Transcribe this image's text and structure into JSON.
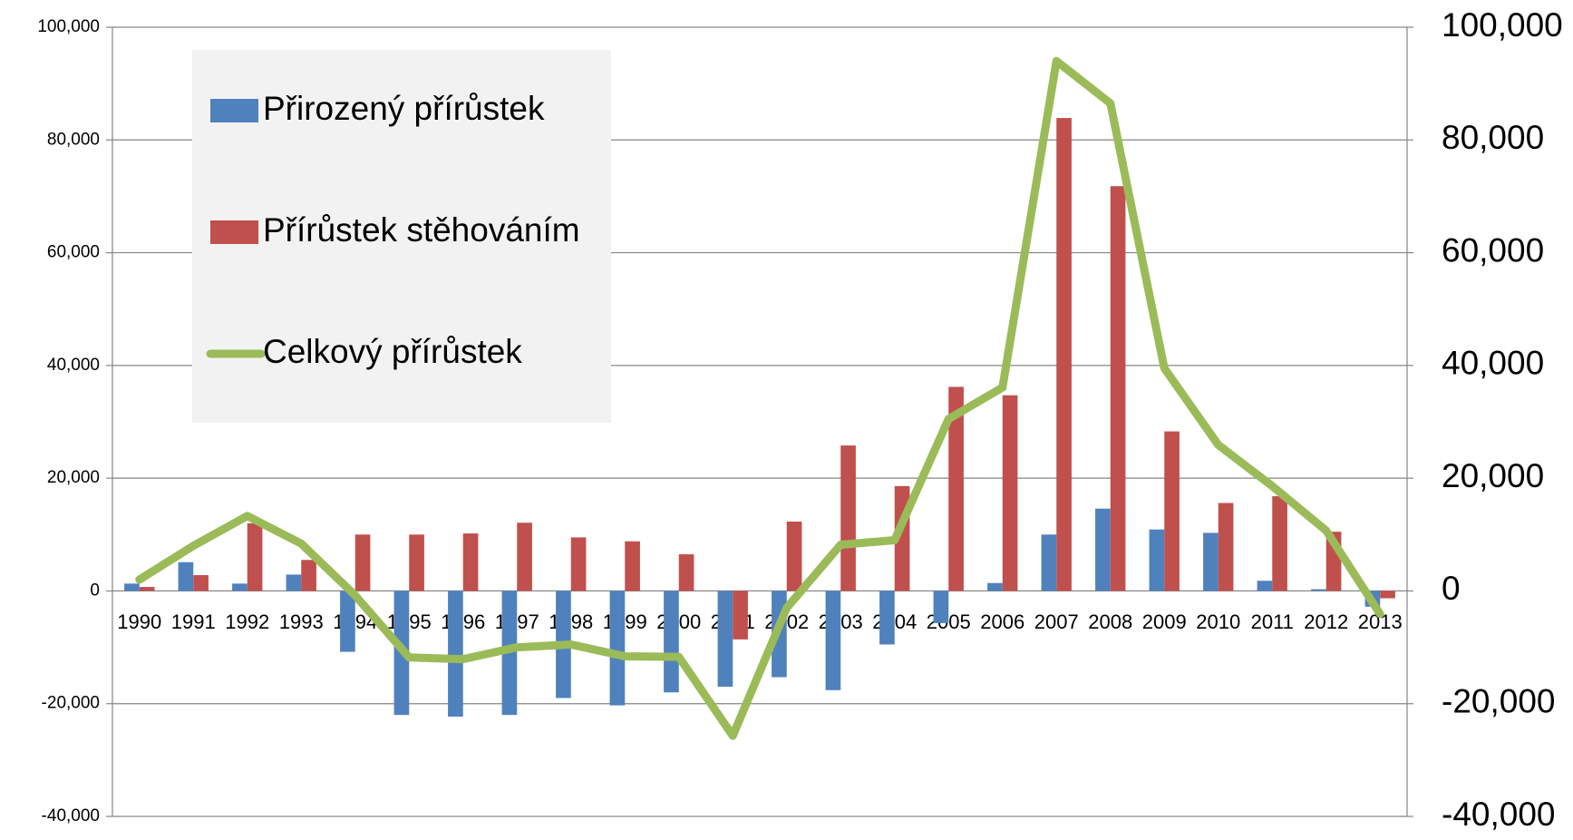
{
  "chart_data": {
    "type": "bar",
    "categories": [
      "1990",
      "1991",
      "1992",
      "1993",
      "1994",
      "1995",
      "1996",
      "1997",
      "1998",
      "1999",
      "2000",
      "2001",
      "2002",
      "2003",
      "2004",
      "2005",
      "2006",
      "2007",
      "2008",
      "2009",
      "2010",
      "2011",
      "2012",
      "2013"
    ],
    "series": [
      {
        "name": "Přirozený přírůstek",
        "color": "#4f81bd",
        "type": "bar",
        "values": [
          1300,
          5100,
          1300,
          2900,
          -10800,
          -22000,
          -22300,
          -22000,
          -19000,
          -20300,
          -18000,
          -17000,
          -15300,
          -17600,
          -9500,
          -5700,
          1400,
          10000,
          14600,
          10900,
          10300,
          1800,
          300,
          -2800
        ]
      },
      {
        "name": "Přírůstek stěhováním",
        "color": "#c0504d",
        "type": "bar",
        "values": [
          700,
          2800,
          12000,
          5500,
          10000,
          10000,
          10200,
          12100,
          9500,
          8800,
          6500,
          -8600,
          12300,
          25800,
          18600,
          36200,
          34700,
          83900,
          71800,
          28300,
          15600,
          16800,
          10500,
          -1300
        ]
      },
      {
        "name": "Celkový přírůstek",
        "color": "#9bbb59",
        "type": "line",
        "axis": "y2",
        "values": [
          2000,
          8000,
          13300,
          8400,
          -800,
          -11800,
          -12100,
          -10000,
          -9500,
          -11600,
          -11700,
          -25700,
          -3000,
          8200,
          9000,
          30500,
          36100,
          94000,
          86500,
          39500,
          25900,
          18600,
          10700,
          -4100
        ]
      }
    ],
    "ylim": [
      -40000,
      100000
    ],
    "yticks": [
      {
        "value": -40000,
        "label": "-40,000"
      },
      {
        "value": -20000,
        "label": "-20,000"
      },
      0,
      {
        "value": 20000,
        "label": "20,000"
      },
      {
        "value": 40000,
        "label": "40,000"
      },
      {
        "value": 60000,
        "label": "60,000"
      },
      {
        "value": 80000,
        "label": "80,000"
      },
      {
        "value": 100000,
        "label": "100,000"
      }
    ],
    "y2lim": [
      -40000,
      100000
    ],
    "y2ticks": [
      {
        "value": -40000,
        "label": "-40,000"
      },
      {
        "value": -20000,
        "label": "-20,000"
      },
      0,
      {
        "value": 20000,
        "label": "20,000"
      },
      {
        "value": 40000,
        "label": "40,000"
      },
      {
        "value": 60000,
        "label": "60,000"
      },
      {
        "value": 80000,
        "label": "80,000"
      },
      {
        "value": 100000,
        "label": "100,000"
      }
    ],
    "grid": true
  }
}
